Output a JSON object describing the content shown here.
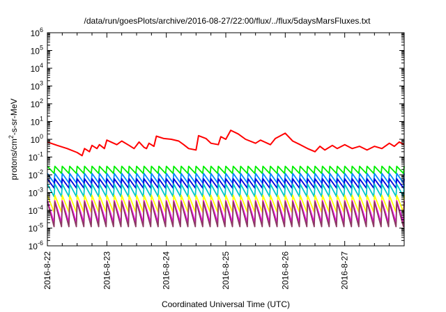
{
  "chart_data": {
    "type": "line",
    "title": "/data/run/goesPlots/archive/2016-08-27/22:00/flux/../flux/5daysMarsFluxes.txt",
    "xlabel": "Coordinated Universal Time (UTC)",
    "ylabel": "protons/cm²-s-sr-MeV",
    "yscale": "log",
    "xlim": [
      "2016-08-22",
      "2016-08-28"
    ],
    "ylim": [
      1e-06,
      1000000.0
    ],
    "x_ticks": [
      "2016-8-22",
      "2016-8-23",
      "2016-8-24",
      "2016-8-25",
      "2016-8-26",
      "2016-8-27"
    ],
    "y_ticks": [
      {
        "base": "10",
        "exp": "-6",
        "value": 1e-06
      },
      {
        "base": "10",
        "exp": "-5",
        "value": 1e-05
      },
      {
        "base": "10",
        "exp": "-4",
        "value": 0.0001
      },
      {
        "base": "10",
        "exp": "-3",
        "value": 0.001
      },
      {
        "base": "10",
        "exp": "-2",
        "value": 0.01
      },
      {
        "base": "10",
        "exp": "-1",
        "value": 0.1
      },
      {
        "base": "10",
        "exp": "0",
        "value": 1.0
      },
      {
        "base": "10",
        "exp": "1",
        "value": 10.0
      },
      {
        "base": "10",
        "exp": "2",
        "value": 100.0
      },
      {
        "base": "10",
        "exp": "3",
        "value": 1000.0
      },
      {
        "base": "10",
        "exp": "4",
        "value": 10000.0
      },
      {
        "base": "10",
        "exp": "5",
        "value": 100000.0
      },
      {
        "base": "10",
        "exp": "6",
        "value": 1000000.0
      }
    ],
    "grid": false,
    "legend": "none",
    "series": [
      {
        "color": "#ff0000",
        "points": [
          [
            "2016-08-22 00:00",
            0.7
          ],
          [
            "2016-08-22 04:00",
            0.45
          ],
          [
            "2016-08-22 08:00",
            0.3
          ],
          [
            "2016-08-22 12:00",
            0.18
          ],
          [
            "2016-08-22 14:00",
            0.12
          ],
          [
            "2016-08-22 15:00",
            0.3
          ],
          [
            "2016-08-22 17:00",
            0.2
          ],
          [
            "2016-08-22 18:00",
            0.45
          ],
          [
            "2016-08-22 20:00",
            0.3
          ],
          [
            "2016-08-22 21:00",
            0.5
          ],
          [
            "2016-08-22 23:00",
            0.3
          ],
          [
            "2016-08-23 00:00",
            0.9
          ],
          [
            "2016-08-23 04:00",
            0.5
          ],
          [
            "2016-08-23 06:00",
            0.8
          ],
          [
            "2016-08-23 09:00",
            0.45
          ],
          [
            "2016-08-23 11:00",
            0.3
          ],
          [
            "2016-08-23 13:00",
            0.7
          ],
          [
            "2016-08-23 15:00",
            0.35
          ],
          [
            "2016-08-23 16:00",
            0.3
          ],
          [
            "2016-08-23 17:00",
            0.6
          ],
          [
            "2016-08-23 19:00",
            0.4
          ],
          [
            "2016-08-23 20:00",
            1.5
          ],
          [
            "2016-08-23 23:00",
            1.1
          ],
          [
            "2016-08-24 02:00",
            1.0
          ],
          [
            "2016-08-24 05:00",
            0.8
          ],
          [
            "2016-08-24 07:00",
            0.5
          ],
          [
            "2016-08-24 09:00",
            0.3
          ],
          [
            "2016-08-24 12:00",
            0.25
          ],
          [
            "2016-08-24 13:00",
            1.6
          ],
          [
            "2016-08-24 16:00",
            1.1
          ],
          [
            "2016-08-24 18:00",
            0.6
          ],
          [
            "2016-08-24 21:00",
            0.5
          ],
          [
            "2016-08-24 22:00",
            1.4
          ],
          [
            "2016-08-25 00:00",
            1.0
          ],
          [
            "2016-08-25 02:00",
            3.2
          ],
          [
            "2016-08-25 05:00",
            2.0
          ],
          [
            "2016-08-25 08:00",
            1.0
          ],
          [
            "2016-08-25 12:00",
            0.6
          ],
          [
            "2016-08-25 14:00",
            0.9
          ],
          [
            "2016-08-25 18:00",
            0.5
          ],
          [
            "2016-08-25 20:00",
            1.1
          ],
          [
            "2016-08-26 00:00",
            2.2
          ],
          [
            "2016-08-26 03:00",
            0.8
          ],
          [
            "2016-08-26 06:00",
            0.5
          ],
          [
            "2016-08-26 09:00",
            0.3
          ],
          [
            "2016-08-26 12:00",
            0.2
          ],
          [
            "2016-08-26 14:00",
            0.4
          ],
          [
            "2016-08-26 16:00",
            0.25
          ],
          [
            "2016-08-26 19:00",
            0.45
          ],
          [
            "2016-08-26 21:00",
            0.3
          ],
          [
            "2016-08-27 00:00",
            0.5
          ],
          [
            "2016-08-27 03:00",
            0.3
          ],
          [
            "2016-08-27 06:00",
            0.4
          ],
          [
            "2016-08-27 09:00",
            0.25
          ],
          [
            "2016-08-27 12:00",
            0.4
          ],
          [
            "2016-08-27 15:00",
            0.3
          ],
          [
            "2016-08-27 18:00",
            0.6
          ],
          [
            "2016-08-27 20:00",
            0.4
          ],
          [
            "2016-08-27 22:00",
            0.7
          ],
          [
            "2016-08-28 00:00",
            0.5
          ]
        ]
      },
      {
        "color": "#00ee00",
        "sawtooth": {
          "peaks_per_day": 8,
          "high": 0.03,
          "low": 0.012
        }
      },
      {
        "color": "#0088ff",
        "sawtooth": {
          "peaks_per_day": 8,
          "high": 0.012,
          "low": 0.0035
        }
      },
      {
        "color": "#0000dd",
        "sawtooth": {
          "peaks_per_day": 8,
          "high": 0.006,
          "low": 0.0018
        }
      },
      {
        "color": "#00c8c8",
        "sawtooth": {
          "peaks_per_day": 8,
          "high": 0.003,
          "low": 0.0006
        }
      },
      {
        "color": "#ffff00",
        "sawtooth": {
          "peaks_per_day": 8,
          "high": 0.0007,
          "low": 8e-05
        }
      },
      {
        "color": "#ff00ff",
        "sawtooth": {
          "peaks_per_day": 8,
          "high": 0.00035,
          "low": 2e-05
        }
      },
      {
        "color": "#8b3a62",
        "sawtooth": {
          "peaks_per_day": 8,
          "high": 0.0003,
          "low": 1.2e-05
        }
      }
    ]
  }
}
